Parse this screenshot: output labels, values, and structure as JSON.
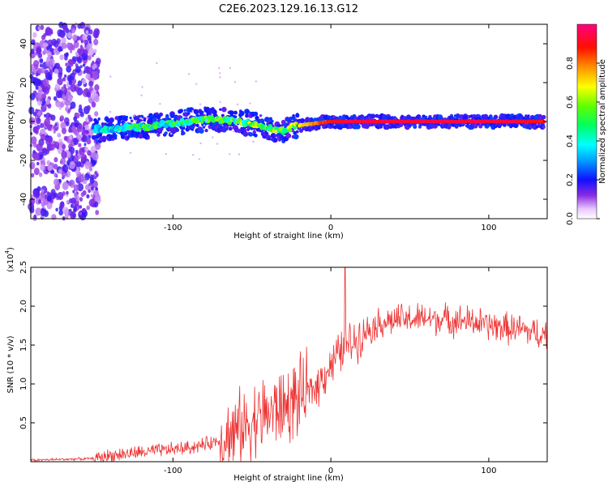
{
  "title": "C2E6.2023.129.16.13.G12",
  "chart_data": [
    {
      "type": "heatmap",
      "panel": "top",
      "xlabel": "Height of straight line (km)",
      "ylabel": "Frequency (Hz)",
      "xlim": [
        -190,
        137
      ],
      "ylim": [
        -50,
        50
      ],
      "xticks": [
        -100,
        0,
        100
      ],
      "xtick_labels": [
        "-100",
        "0",
        "100"
      ],
      "yticks": [
        -40,
        -20,
        0,
        20,
        40
      ],
      "ytick_labels": [
        "-40",
        "-20",
        "0",
        "20",
        "40"
      ],
      "colorbar": {
        "label": "Normalized spectral amplitude",
        "range": [
          0,
          1
        ],
        "ticks": [
          0,
          0.2,
          0.4,
          0.6,
          0.8
        ],
        "tick_labels": [
          "0.0",
          "0.2",
          "0.4",
          "0.6",
          "0.8"
        ]
      },
      "signal_trace": {
        "x": [
          -150,
          -140,
          -130,
          -120,
          -110,
          -100,
          -90,
          -80,
          -70,
          -60,
          -50,
          -40,
          -30,
          -25,
          -20,
          -10,
          0,
          10,
          20,
          40,
          60,
          80,
          100,
          120,
          135
        ],
        "y": [
          -4,
          -4,
          -3,
          -3,
          -2,
          -1,
          0,
          1,
          1,
          0,
          -1,
          -3,
          -5,
          -3,
          -2,
          -1,
          0,
          0,
          0,
          0,
          0,
          0,
          0,
          0,
          0
        ],
        "amplitude": [
          0.3,
          0.4,
          0.45,
          0.45,
          0.45,
          0.45,
          0.45,
          0.5,
          0.5,
          0.5,
          0.55,
          0.55,
          0.5,
          0.6,
          0.7,
          0.8,
          0.9,
          0.95,
          0.95,
          0.95,
          0.95,
          0.95,
          0.95,
          0.95,
          0.9
        ]
      },
      "noise_region_x": [
        -190,
        -147
      ]
    },
    {
      "type": "line",
      "panel": "bottom",
      "xlabel": "Height of straight line (km)",
      "ylabel": "SNR (10 * v/v)",
      "yscale_label": "(x10",
      "yscale_exp": "4",
      "xlim": [
        -190,
        137
      ],
      "ylim": [
        0,
        2.5
      ],
      "xticks": [
        -100,
        0,
        100
      ],
      "xtick_labels": [
        "-100",
        "0",
        "100"
      ],
      "yticks": [
        0.5,
        1.0,
        1.5,
        2.0,
        2.5
      ],
      "ytick_labels": [
        "0.5",
        "1.0",
        "1.5",
        "2.0",
        "2.5"
      ],
      "series": [
        {
          "color": "#ee3333",
          "x": [
            -190,
            -170,
            -150,
            -140,
            -130,
            -120,
            -110,
            -100,
            -90,
            -80,
            -70,
            -60,
            -55,
            -50,
            -45,
            -40,
            -35,
            -30,
            -25,
            -20,
            -15,
            -10,
            -5,
            0,
            5,
            10,
            15,
            20,
            25,
            30,
            40,
            50,
            60,
            70,
            80,
            90,
            100,
            110,
            120,
            130,
            137
          ],
          "y": [
            0.02,
            0.03,
            0.04,
            0.08,
            0.1,
            0.12,
            0.14,
            0.16,
            0.18,
            0.22,
            0.28,
            0.38,
            0.45,
            0.52,
            0.58,
            0.62,
            0.66,
            0.7,
            0.75,
            0.82,
            0.88,
            0.95,
            1.1,
            1.25,
            1.38,
            1.5,
            1.55,
            1.65,
            1.72,
            1.78,
            1.82,
            1.83,
            1.84,
            1.83,
            1.82,
            1.8,
            1.75,
            1.72,
            1.7,
            1.65,
            1.65
          ]
        }
      ]
    }
  ]
}
